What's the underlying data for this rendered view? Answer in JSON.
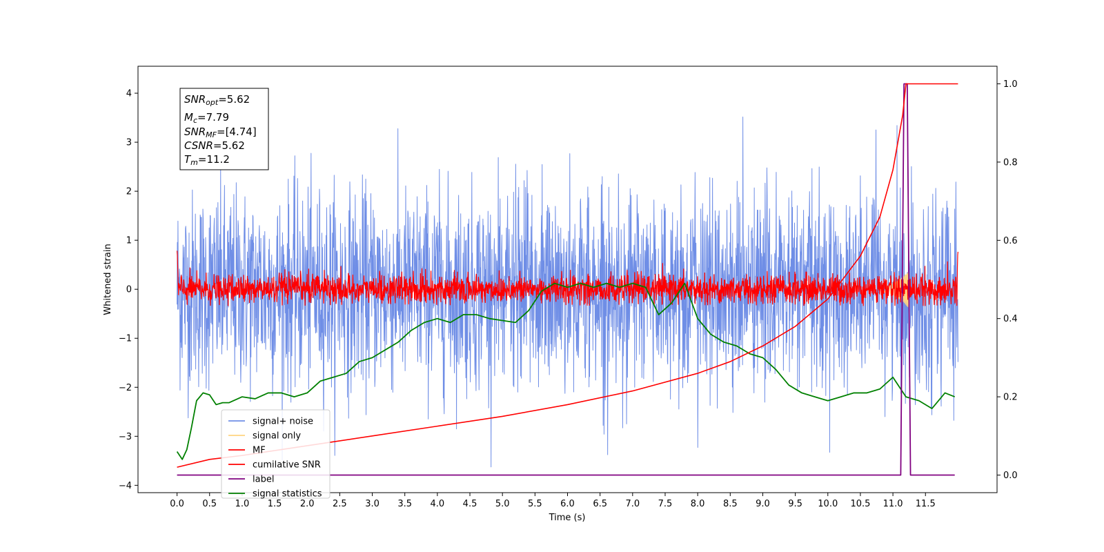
{
  "chart_data": {
    "type": "line",
    "xlabel": "Time (s)",
    "ylabel": "Whitened strain",
    "xlim": [
      -0.6,
      12.6
    ],
    "ylim": [
      -4.15,
      4.55
    ],
    "y2lim": [
      -0.045,
      1.045
    ],
    "xticks": [
      "0.0",
      "0.5",
      "1.0",
      "1.5",
      "2.0",
      "2.5",
      "3.0",
      "3.5",
      "4.0",
      "4.5",
      "5.0",
      "5.5",
      "6.0",
      "6.5",
      "7.0",
      "7.5",
      "8.0",
      "8.5",
      "9.0",
      "9.5",
      "10.0",
      "10.5",
      "11.0",
      "11.5"
    ],
    "yticks": [
      "4",
      "3",
      "2",
      "1",
      "0",
      "−1",
      "−2",
      "−3",
      "−4"
    ],
    "y2ticks": [
      "1.0",
      "0.8",
      "0.6",
      "0.4",
      "0.2",
      "0.0"
    ],
    "legend_position": "lower-left",
    "series": [
      {
        "name": "signal+ noise",
        "axis": "left",
        "color": "#6f8ee6",
        "x_range": [
          0.0,
          12.0
        ],
        "amplitude_std": 1.0,
        "range": [
          -3.75,
          4.15
        ]
      },
      {
        "name": "signal only",
        "axis": "left",
        "color": "#ffd580",
        "x_range": [
          10.8,
          11.25
        ],
        "range": [
          -0.6,
          0.3
        ]
      },
      {
        "name": "MF",
        "axis": "left",
        "color": "#ff0000",
        "x_range": [
          0.0,
          12.0
        ],
        "amplitude_std": 0.15,
        "range": [
          -0.35,
          1.0
        ]
      },
      {
        "name": "cumilative SNR",
        "axis": "right",
        "color": "#ff0000",
        "x": [
          0.0,
          0.5,
          1.0,
          2.0,
          3.0,
          4.0,
          5.0,
          6.0,
          7.0,
          8.0,
          8.5,
          9.0,
          9.5,
          10.0,
          10.5,
          10.8,
          11.0,
          11.15,
          11.2,
          12.0
        ],
        "values": [
          0.02,
          0.04,
          0.05,
          0.075,
          0.1,
          0.125,
          0.15,
          0.18,
          0.215,
          0.26,
          0.29,
          0.33,
          0.38,
          0.45,
          0.56,
          0.66,
          0.78,
          0.92,
          1.0,
          1.0
        ]
      },
      {
        "name": "label",
        "axis": "right",
        "color": "#800080",
        "x": [
          0.0,
          11.12,
          11.17,
          11.22,
          11.27,
          11.95
        ],
        "values": [
          0.0,
          0.0,
          1.0,
          1.0,
          0.0,
          0.0
        ]
      },
      {
        "name": "signal statistics",
        "axis": "right",
        "color": "#008000",
        "x": [
          0.0,
          0.08,
          0.15,
          0.22,
          0.3,
          0.4,
          0.5,
          0.6,
          0.7,
          0.8,
          1.0,
          1.2,
          1.4,
          1.6,
          1.8,
          2.0,
          2.2,
          2.4,
          2.6,
          2.8,
          3.0,
          3.2,
          3.4,
          3.6,
          3.8,
          4.0,
          4.2,
          4.4,
          4.6,
          4.8,
          5.0,
          5.2,
          5.4,
          5.6,
          5.8,
          6.0,
          6.2,
          6.4,
          6.6,
          6.8,
          7.0,
          7.2,
          7.4,
          7.6,
          7.8,
          8.0,
          8.2,
          8.4,
          8.6,
          8.8,
          9.0,
          9.2,
          9.4,
          9.6,
          9.8,
          10.0,
          10.2,
          10.4,
          10.6,
          10.8,
          11.0,
          11.2,
          11.4,
          11.6,
          11.8,
          11.95
        ],
        "values": [
          0.06,
          0.04,
          0.065,
          0.12,
          0.19,
          0.21,
          0.205,
          0.18,
          0.185,
          0.185,
          0.2,
          0.195,
          0.21,
          0.21,
          0.2,
          0.21,
          0.24,
          0.25,
          0.26,
          0.29,
          0.3,
          0.32,
          0.34,
          0.37,
          0.39,
          0.4,
          0.39,
          0.41,
          0.41,
          0.4,
          0.395,
          0.39,
          0.42,
          0.47,
          0.49,
          0.48,
          0.49,
          0.48,
          0.49,
          0.48,
          0.49,
          0.48,
          0.41,
          0.44,
          0.49,
          0.4,
          0.36,
          0.34,
          0.33,
          0.31,
          0.3,
          0.27,
          0.23,
          0.21,
          0.2,
          0.19,
          0.2,
          0.21,
          0.21,
          0.22,
          0.25,
          0.2,
          0.19,
          0.17,
          0.21,
          0.2
        ]
      }
    ],
    "annotation": {
      "snr_opt": {
        "symbol": "SNR",
        "sub": "opt",
        "value": "=5.62"
      },
      "mc": {
        "symbol": "M",
        "sub": "c",
        "value": "=7.79"
      },
      "snr_mf": {
        "symbol": "SNR",
        "sub": "MF",
        "value": "=[4.74]"
      },
      "csnr": {
        "symbol": "CSNR",
        "sub": "",
        "value": "=5.62"
      },
      "tm": {
        "symbol": "T",
        "sub": "m",
        "value": "=11.2"
      }
    }
  }
}
